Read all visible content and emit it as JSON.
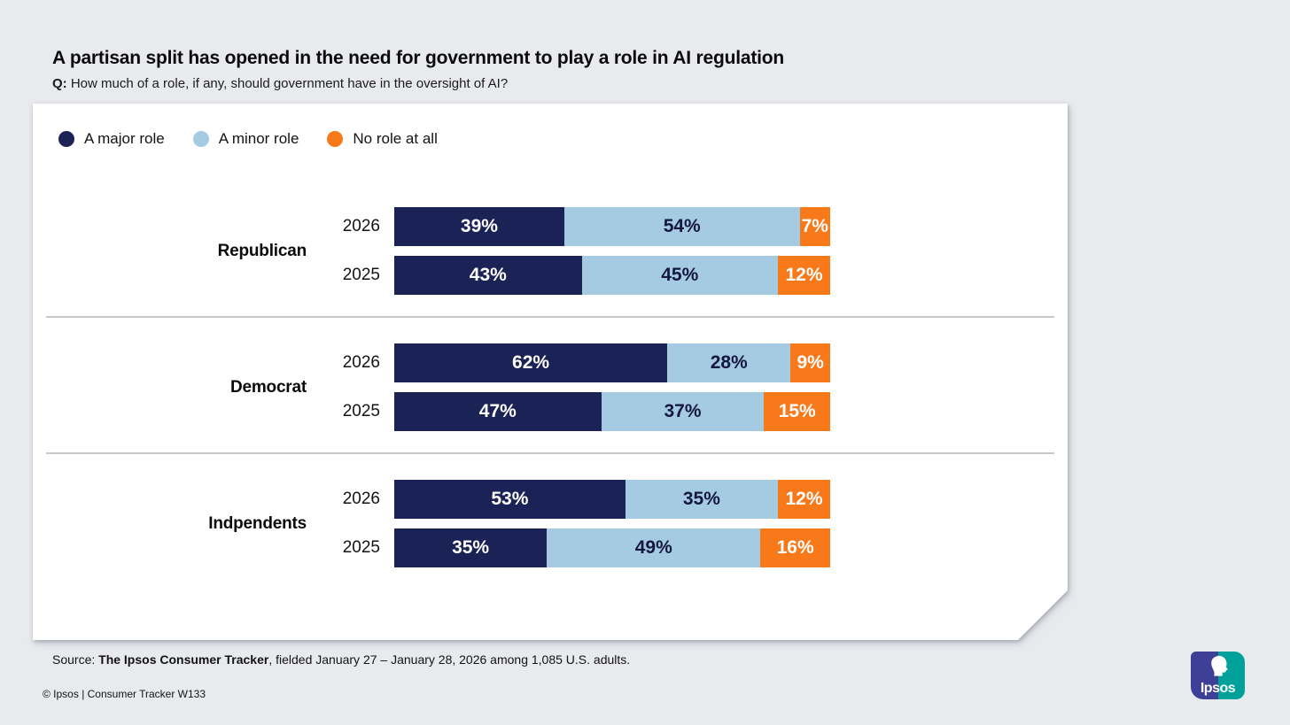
{
  "header": {
    "title": "A partisan split has opened in the need for government to play a role in AI regulation",
    "q_label": "Q:",
    "question": "How much of a role, if any, should government have in the oversight of AI?"
  },
  "legend": {
    "position": "top-left",
    "items": [
      {
        "label": "A major role",
        "color": "#1B2256",
        "value_text_color": "#FFFFFF"
      },
      {
        "label": "A minor role",
        "color": "#A5CBE2",
        "value_text_color": "#14183F"
      },
      {
        "label": "No role at all",
        "color": "#F8791A",
        "value_text_color": "#FFFFFF"
      }
    ]
  },
  "chart_data": {
    "type": "bar",
    "orientation": "horizontal",
    "stacked": true,
    "unit": "%",
    "title": "A partisan split has opened in the need for government to play a role in AI regulation",
    "question": "How much of a role, if any, should government have in the oversight of AI?",
    "series_names": [
      "A major role",
      "A minor role",
      "No role at all"
    ],
    "colors": [
      "#1B2256",
      "#A5CBE2",
      "#F8791A"
    ],
    "xlim": [
      0,
      100
    ],
    "grid": false,
    "groups": [
      {
        "label": "Republican",
        "rows": [
          {
            "year": "2026",
            "values": [
              39,
              54,
              7
            ]
          },
          {
            "year": "2025",
            "values": [
              43,
              45,
              12
            ]
          }
        ]
      },
      {
        "label": "Democrat",
        "rows": [
          {
            "year": "2026",
            "values": [
              62,
              28,
              9
            ]
          },
          {
            "year": "2025",
            "values": [
              47,
              37,
              15
            ]
          }
        ]
      },
      {
        "label": "Indpendents",
        "rows": [
          {
            "year": "2026",
            "values": [
              53,
              35,
              12
            ]
          },
          {
            "year": "2025",
            "values": [
              35,
              49,
              16
            ]
          }
        ]
      }
    ]
  },
  "source": {
    "prefix": "Source: ",
    "bold": "The Ipsos Consumer Tracker",
    "suffix": ", fielded January 27 – January 28, 2026 among 1,085 U.S. adults."
  },
  "footer": {
    "copyright": "© Ipsos | Consumer Tracker W133"
  },
  "logo": {
    "text": "Ipsos",
    "left_color": "#3E3F97",
    "right_color": "#00A19A"
  }
}
